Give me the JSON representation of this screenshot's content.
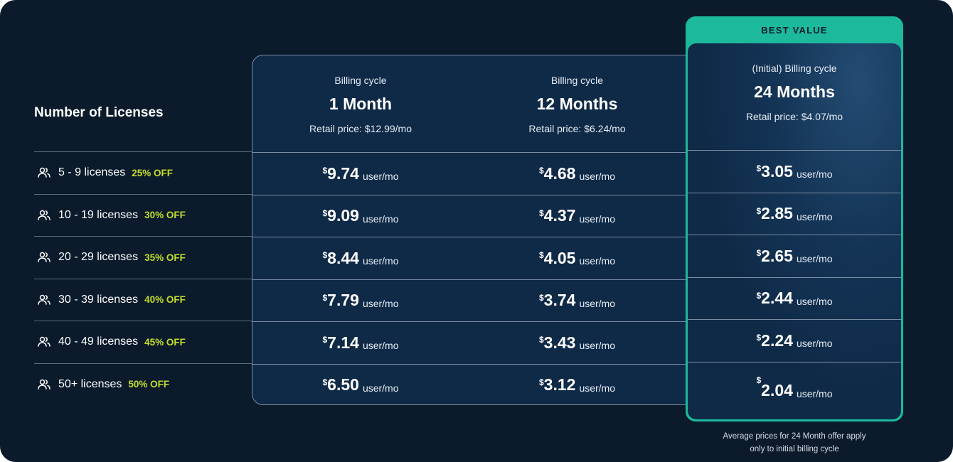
{
  "best_value_label": "BEST VALUE",
  "licenses_title": "Number of Licenses",
  "unit": "user/mo",
  "currency": "$",
  "rows": [
    {
      "label": "5 - 9 licenses",
      "discount": "25% OFF"
    },
    {
      "label": "10 - 19 licenses",
      "discount": "30% OFF"
    },
    {
      "label": "20 - 29 licenses",
      "discount": "35% OFF"
    },
    {
      "label": "30 - 39 licenses",
      "discount": "40% OFF"
    },
    {
      "label": "40 - 49 licenses",
      "discount": "45% OFF"
    },
    {
      "label": "50+ licenses",
      "discount": "50% OFF"
    }
  ],
  "plans": [
    {
      "cycle_label": "Billing cycle",
      "period": "1 Month",
      "retail": "Retail price: $12.99/mo",
      "prices": [
        "9.74",
        "9.09",
        "8.44",
        "7.79",
        "7.14",
        "6.50"
      ]
    },
    {
      "cycle_label": "Billing cycle",
      "period": "12 Months",
      "retail": "Retail price: $6.24/mo",
      "prices": [
        "4.68",
        "4.37",
        "4.05",
        "3.74",
        "3.43",
        "3.12"
      ]
    },
    {
      "cycle_label": "(Initial) Billing cycle",
      "period": "24 Months",
      "retail": "Retail price: $4.07/mo",
      "prices": [
        "3.05",
        "2.85",
        "2.65",
        "2.44",
        "2.24",
        "2.04"
      ]
    }
  ],
  "footnote_line1": "Average prices for 24 Month offer apply",
  "footnote_line2": "only to initial billing cycle",
  "colors": {
    "background": "#0b1b2b",
    "accent": "#1db99c",
    "discount": "#c4dd2b",
    "cell": "#0f2a47"
  },
  "icons": {
    "row_icon": "users-icon"
  }
}
